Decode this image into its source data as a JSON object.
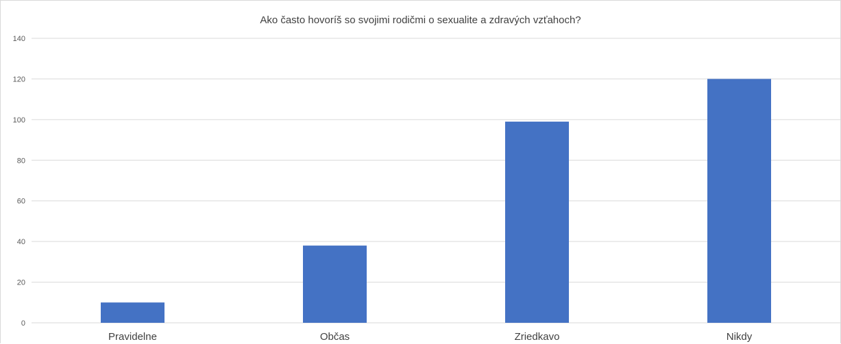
{
  "chart_data": {
    "type": "bar",
    "title": "Ako často hovoríš so svojimi rodičmi o sexualite a zdravých vzťahoch?",
    "categories": [
      "Pravidelne",
      "Občas",
      "Zriedkavo",
      "Nikdy"
    ],
    "values": [
      10,
      38,
      99,
      120
    ],
    "ylim": [
      0,
      140
    ],
    "yticks": [
      0,
      20,
      40,
      60,
      80,
      100,
      120,
      140
    ],
    "grid": true,
    "legend": "none",
    "bar_color": "#4472C4",
    "grid_color": "#d9d9d9"
  }
}
